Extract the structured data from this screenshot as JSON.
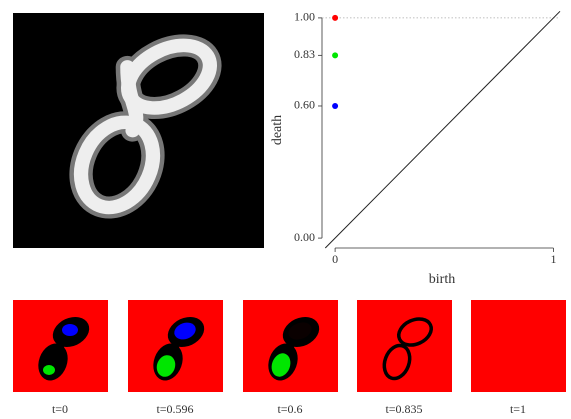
{
  "chart_data": {
    "type": "scatter",
    "x": [
      0,
      0,
      0
    ],
    "values": [
      1.0,
      0.83,
      0.6
    ],
    "colors": [
      "#ff0000",
      "#00e600",
      "#0000ff"
    ],
    "xlabel": "birth",
    "ylabel": "death",
    "xlim": [
      -0.06,
      1.03
    ],
    "ylim": [
      -0.045,
      1.045
    ],
    "xticks": [
      0,
      1
    ],
    "yticks": [
      {
        "value": 0,
        "label": "0.00"
      },
      {
        "value": 0.6,
        "label": "0.60"
      },
      {
        "value": 0.83,
        "label": "0.83"
      },
      {
        "value": 1,
        "label": "1.00"
      }
    ],
    "diagonal": true
  },
  "filtration_labels": [
    "t=0",
    "t=0.596",
    "t=0.6",
    "t=0.835",
    "t=1"
  ]
}
